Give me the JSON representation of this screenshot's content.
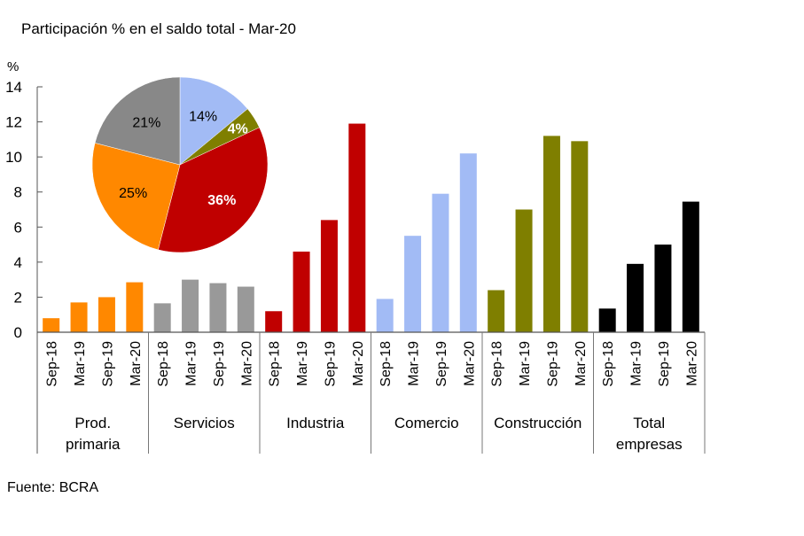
{
  "chart_data": {
    "type": "bar",
    "title": "Participación % en el saldo total - Mar-20",
    "ylabel": "%",
    "xlabel": "",
    "ylim": [
      0,
      14
    ],
    "yticks": [
      0,
      2,
      4,
      6,
      8,
      10,
      12,
      14
    ],
    "grid": false,
    "source": "Fuente: BCRA",
    "periods": [
      "Sep-18",
      "Mar-19",
      "Sep-19",
      "Mar-20"
    ],
    "groups": [
      {
        "name": "Prod. primaria",
        "label_lines": [
          "Prod.",
          "primaria"
        ],
        "color": "#ff8800",
        "values": [
          0.8,
          1.7,
          2.0,
          2.85
        ]
      },
      {
        "name": "Servicios",
        "label_lines": [
          "Servicios"
        ],
        "color": "#999999",
        "values": [
          1.65,
          3.0,
          2.8,
          2.6
        ]
      },
      {
        "name": "Industria",
        "label_lines": [
          "Industria"
        ],
        "color": "#c00000",
        "values": [
          1.2,
          4.6,
          6.4,
          11.9
        ]
      },
      {
        "name": "Comercio",
        "label_lines": [
          "Comercio"
        ],
        "color": "#a2bbf5",
        "values": [
          1.9,
          5.5,
          7.9,
          10.2
        ]
      },
      {
        "name": "Construcción",
        "label_lines": [
          "Construcción"
        ],
        "color": "#7f7f00",
        "values": [
          2.4,
          7.0,
          11.2,
          10.9
        ]
      },
      {
        "name": "Total empresas",
        "label_lines": [
          "Total",
          "empresas"
        ],
        "color": "#000000",
        "values": [
          1.35,
          3.9,
          5.0,
          7.45
        ]
      }
    ],
    "inset_pie": {
      "type": "pie",
      "start": "top",
      "direction": "clockwise",
      "slices": [
        {
          "name": "Comercio",
          "value": 14,
          "label": "14%",
          "color": "#a2bbf5",
          "label_color": "#000000"
        },
        {
          "name": "Construcción",
          "value": 4,
          "label": "4%",
          "color": "#7f7f00",
          "label_color": "#ffffff"
        },
        {
          "name": "Industria",
          "value": 36,
          "label": "36%",
          "color": "#c00000",
          "label_color": "#ffffff"
        },
        {
          "name": "Prod. primaria",
          "value": 25,
          "label": "25%",
          "color": "#ff8800",
          "label_color": "#000000"
        },
        {
          "name": "Servicios",
          "value": 21,
          "label": "21%",
          "color": "#888888",
          "label_color": "#000000"
        }
      ]
    }
  }
}
